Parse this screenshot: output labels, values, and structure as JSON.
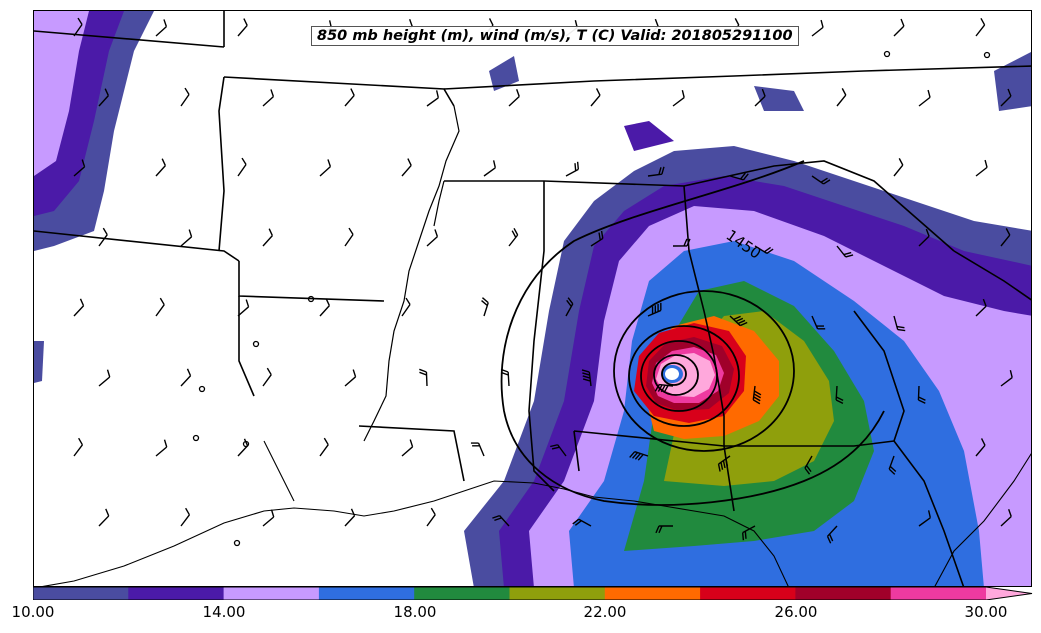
{
  "title": "850 mb height (m), wind (m/s), T (C) Valid: 201805291100",
  "contour_label": "1450",
  "colorbar": {
    "bins": [
      {
        "from": 10,
        "to": 12,
        "color": "#4a4ca0"
      },
      {
        "from": 12,
        "to": 14,
        "color": "#4b1aa8"
      },
      {
        "from": 14,
        "to": 16,
        "color": "#c79aff"
      },
      {
        "from": 16,
        "to": 18,
        "color": "#2f6ee0"
      },
      {
        "from": 18,
        "to": 20,
        "color": "#218a3e"
      },
      {
        "from": 20,
        "to": 22,
        "color": "#8f9f0c"
      },
      {
        "from": 22,
        "to": 24,
        "color": "#ff6a00"
      },
      {
        "from": 24,
        "to": 26,
        "color": "#d8001a"
      },
      {
        "from": 26,
        "to": 28,
        "color": "#a0002a"
      },
      {
        "from": 28,
        "to": 30,
        "color": "#ee3aa0"
      },
      {
        "from": 30,
        "to": 32,
        "color": "#ffa8dc"
      }
    ],
    "tick_labels": [
      "10.00",
      "14.00",
      "18.00",
      "22.00",
      "26.00",
      "30.00"
    ]
  }
}
